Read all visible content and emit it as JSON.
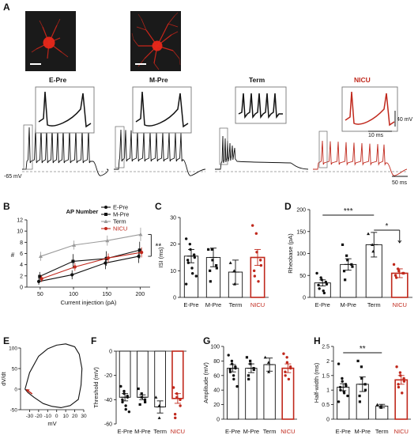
{
  "panel_labels": {
    "a": "A",
    "b": "B",
    "c": "C",
    "d": "D",
    "e": "E",
    "f": "F",
    "g": "G",
    "h": "H"
  },
  "panel_a": {
    "cells": [
      "E-Pre",
      "M-Pre",
      "Term",
      "NICU"
    ],
    "resting_label": "-65 mV",
    "scale_mv": "40 mV",
    "scale_ms_inset": "10 ms",
    "scale_ms_trace": "50 ms",
    "colors": {
      "black": "#111111",
      "nicu": "#c0281c",
      "micro_bg": "#1a1a1a",
      "micro_fg": "#e8281a"
    }
  },
  "chart_data": [
    {
      "panel": "B",
      "type": "line",
      "title": "AP Number",
      "xlabel": "Current injection (pA)",
      "ylabel": "#",
      "x": [
        50,
        100,
        150,
        200
      ],
      "ylim": [
        0,
        12
      ],
      "yticks": [
        0,
        2,
        4,
        6,
        8,
        10,
        12
      ],
      "series": [
        {
          "name": "E-Pre",
          "values": [
            1.0,
            2.2,
            4.3,
            5.5
          ],
          "err": [
            0.6,
            0.8,
            1.1,
            1.2
          ],
          "color": "#111111",
          "marker": "circle"
        },
        {
          "name": "M-Pre",
          "values": [
            1.9,
            4.6,
            5.1,
            6.6
          ],
          "err": [
            0.8,
            1.3,
            1.3,
            1.5
          ],
          "color": "#111111",
          "marker": "square"
        },
        {
          "name": "Term",
          "values": [
            5.5,
            7.5,
            8.3,
            9.4
          ],
          "err": [
            0.8,
            0.8,
            0.9,
            1.2
          ],
          "color": "#9a9a9a",
          "marker": "triangle"
        },
        {
          "name": "NICU",
          "values": [
            1.5,
            3.6,
            5.2,
            6.2
          ],
          "err": [
            0.6,
            0.7,
            0.8,
            0.9
          ],
          "color": "#c0281c",
          "marker": "circle"
        }
      ],
      "annotation": "**"
    },
    {
      "panel": "C",
      "type": "bar",
      "ylabel": "ISI (ms)",
      "categories": [
        "E-Pre",
        "M-Pre",
        "Term",
        "NICU"
      ],
      "values": [
        15.5,
        15.0,
        9.5,
        15.0
      ],
      "err": [
        2.5,
        3.5,
        4.5,
        3.0
      ],
      "ylim": [
        0,
        30
      ],
      "yticks": [
        0,
        10,
        20,
        30
      ],
      "colors": [
        "#111111",
        "#111111",
        "#111111",
        "#c0281c"
      ],
      "points": [
        [
          22,
          20,
          18,
          16,
          15,
          14,
          13,
          11,
          9,
          8,
          5
        ],
        [
          18,
          18,
          14,
          12,
          11,
          10,
          6
        ],
        [
          13,
          10,
          5
        ],
        [
          27,
          24,
          17,
          14,
          12,
          10,
          8,
          6
        ]
      ]
    },
    {
      "panel": "D",
      "type": "bar",
      "ylabel": "Rheobase (pA)",
      "categories": [
        "E-Pre",
        "M-Pre",
        "Term",
        "NICU"
      ],
      "values": [
        33,
        75,
        120,
        55
      ],
      "err": [
        7,
        13,
        28,
        10
      ],
      "ylim": [
        0,
        200
      ],
      "yticks": [
        0,
        50,
        100,
        150,
        200
      ],
      "colors": [
        "#111111",
        "#111111",
        "#111111",
        "#c0281c"
      ],
      "points": [
        [
          55,
          45,
          40,
          35,
          30,
          28,
          20,
          15,
          10
        ],
        [
          120,
          95,
          85,
          75,
          70,
          60,
          40
        ],
        [
          145,
          120,
          105
        ],
        [
          75,
          65,
          60,
          55,
          55,
          50,
          45
        ]
      ],
      "annotations": [
        {
          "from": 0,
          "to": 2,
          "text": "***"
        },
        {
          "from": 2,
          "to": 3,
          "text": "*"
        }
      ]
    },
    {
      "panel": "E",
      "type": "line",
      "xlabel": "mV",
      "ylabel": "dV/dt",
      "xlim": [
        -40,
        30
      ],
      "xticks": [
        -30,
        -20,
        -10,
        0,
        10,
        20,
        30
      ],
      "ylim": [
        -50,
        100
      ],
      "yticks": [
        -50,
        0,
        50,
        100
      ],
      "series": [
        {
          "x": [
            -35,
            -30,
            -20,
            -10,
            0,
            10,
            20,
            25,
            28,
            27,
            24,
            15,
            5,
            -5,
            -15,
            -25,
            -32,
            -35
          ],
          "values": [
            0,
            40,
            80,
            98,
            107,
            110,
            103,
            85,
            50,
            10,
            -25,
            -40,
            -45,
            -42,
            -35,
            -20,
            -8,
            0
          ],
          "color": "#111111"
        }
      ],
      "annotation": {
        "type": "arrow",
        "x": -35,
        "y": 0,
        "color": "#c0281c"
      }
    },
    {
      "panel": "F",
      "type": "bar",
      "ylabel": "Threshold (mV)",
      "categories": [
        "E-Pre",
        "M-Pre",
        "Term",
        "NICU"
      ],
      "values": [
        -38,
        -38,
        -46,
        -39
      ],
      "err": [
        3,
        2,
        5,
        4
      ],
      "ylim": [
        -60,
        0
      ],
      "yticks": [
        0,
        -20,
        -40,
        -60
      ],
      "colors": [
        "#111111",
        "#111111",
        "#111111",
        "#c0281c"
      ],
      "points": [
        [
          -29,
          -33,
          -35,
          -37,
          -38,
          -40,
          -42,
          -45,
          -48,
          -50
        ],
        [
          -31,
          -35,
          -38,
          -40,
          -42,
          -44
        ],
        [
          -38,
          -45,
          -55
        ],
        [
          -30,
          -35,
          -38,
          -40,
          -45,
          -52,
          -55
        ]
      ]
    },
    {
      "panel": "G",
      "type": "bar",
      "ylabel": "Amplitude (mV)",
      "categories": [
        "E-Pre",
        "M-Pre",
        "Term",
        "NICU"
      ],
      "values": [
        70,
        70,
        75,
        70
      ],
      "err": [
        5,
        6,
        9,
        6
      ],
      "ylim": [
        0,
        100
      ],
      "yticks": [
        0,
        20,
        40,
        60,
        80,
        100
      ],
      "colors": [
        "#111111",
        "#111111",
        "#111111",
        "#c0281c"
      ],
      "points": [
        [
          88,
          80,
          76,
          72,
          70,
          68,
          65,
          60,
          55,
          45
        ],
        [
          85,
          80,
          76,
          70,
          68,
          60,
          55
        ],
        [
          85,
          78,
          65
        ],
        [
          90,
          85,
          78,
          72,
          70,
          65,
          60,
          55
        ]
      ]
    },
    {
      "panel": "H",
      "type": "bar",
      "ylabel": "Half-width (ms)",
      "categories": [
        "E-Pre",
        "M-Pre",
        "Term",
        "NICU"
      ],
      "values": [
        1.1,
        1.2,
        0.45,
        1.35
      ],
      "err": [
        0.12,
        0.25,
        0.06,
        0.15
      ],
      "ylim": [
        0,
        2.5
      ],
      "yticks": [
        0.0,
        0.5,
        1.0,
        1.5,
        2.0,
        2.5
      ],
      "colors": [
        "#111111",
        "#111111",
        "#111111",
        "#c0281c"
      ],
      "points": [
        [
          1.9,
          1.4,
          1.3,
          1.2,
          1.15,
          1.1,
          1.0,
          0.95,
          0.9,
          0.8,
          0.6
        ],
        [
          2.0,
          1.8,
          1.4,
          1.2,
          1.0,
          0.8,
          0.6
        ],
        [
          0.5,
          0.45,
          0.4
        ],
        [
          1.8,
          1.6,
          1.5,
          1.4,
          1.3,
          1.2,
          1.1,
          0.9
        ]
      ],
      "annotations": [
        {
          "from": 0,
          "to": 2,
          "text": "**"
        }
      ]
    }
  ]
}
